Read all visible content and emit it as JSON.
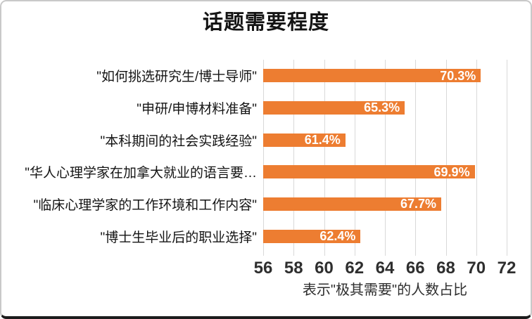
{
  "chart_data": {
    "type": "bar",
    "orientation": "horizontal",
    "title": "话题需要程度",
    "categories": [
      "\"如何挑选研究生/博士导师\"",
      "\"申研/申博材料准备\"",
      "\"本科期间的社会实践经验\"",
      "\"华人心理学家在加拿大就业的语言要…",
      "\"临床心理学家的工作环境和工作内容\"",
      "\"博士生毕业后的职业选择\""
    ],
    "values": [
      70.3,
      65.3,
      61.4,
      69.9,
      67.7,
      62.4
    ],
    "value_labels": [
      "70.3%",
      "65.3%",
      "61.4%",
      "69.9%",
      "67.7%",
      "62.4%"
    ],
    "xlabel": "表示\"极其需要\"的人数占比",
    "xlim": [
      56,
      72
    ],
    "xticks": [
      56,
      58,
      60,
      62,
      64,
      66,
      68,
      70,
      72
    ],
    "grid": true,
    "legend": "none",
    "bar_color": "#ED7D31",
    "value_label_color": "#FFFFFF",
    "gridline_color": "#D9D9D9",
    "text_color": "#141414",
    "axis_text_color": "#2E2E2E"
  }
}
